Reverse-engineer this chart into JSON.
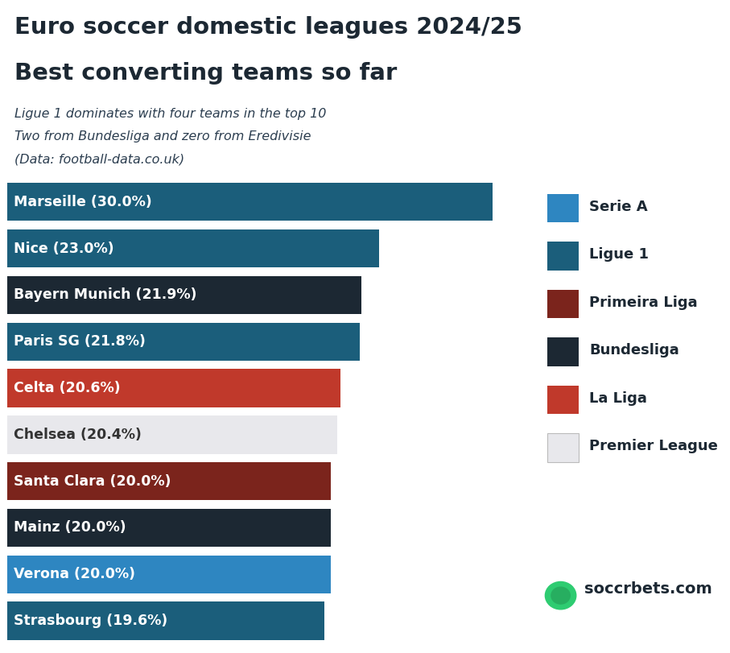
{
  "title_line1": "Euro soccer domestic leagues 2024/25",
  "title_line2": "Best converting teams so far",
  "subtitle_line1": "Ligue 1 dominates with four teams in the top 10",
  "subtitle_line2": "Two from Bundesliga and zero from Eredivisie",
  "subtitle_line3": "(Data: football-data.co.uk)",
  "teams": [
    "Marseille (30.0%)",
    "Nice (23.0%)",
    "Bayern Munich (21.9%)",
    "Paris SG (21.8%)",
    "Celta (20.6%)",
    "Chelsea (20.4%)",
    "Santa Clara (20.0%)",
    "Mainz (20.0%)",
    "Verona (20.0%)",
    "Strasbourg (19.6%)"
  ],
  "values": [
    30.0,
    23.0,
    21.9,
    21.8,
    20.6,
    20.4,
    20.0,
    20.0,
    20.0,
    19.6
  ],
  "colors": [
    "#1b5e7b",
    "#1b5e7b",
    "#1c2833",
    "#1b5e7b",
    "#c0392b",
    "#e8e8ec",
    "#7b241c",
    "#1c2833",
    "#2e86c1",
    "#1b5e7b"
  ],
  "text_colors": [
    "white",
    "white",
    "white",
    "white",
    "white",
    "#333333",
    "white",
    "white",
    "white",
    "white"
  ],
  "legend_items": [
    {
      "label": "Serie A",
      "color": "#2e86c1"
    },
    {
      "label": "Ligue 1",
      "color": "#1b5e7b"
    },
    {
      "label": "Primeira Liga",
      "color": "#7b241c"
    },
    {
      "label": "Bundesliga",
      "color": "#1c2833"
    },
    {
      "label": "La Liga",
      "color": "#c0392b"
    },
    {
      "label": "Premier League",
      "color": "#e8e8ec"
    }
  ],
  "bg_color": "#ffffff",
  "title_color": "#1c2833",
  "subtitle_color": "#2c3e50",
  "watermark": "soccrbets.com"
}
